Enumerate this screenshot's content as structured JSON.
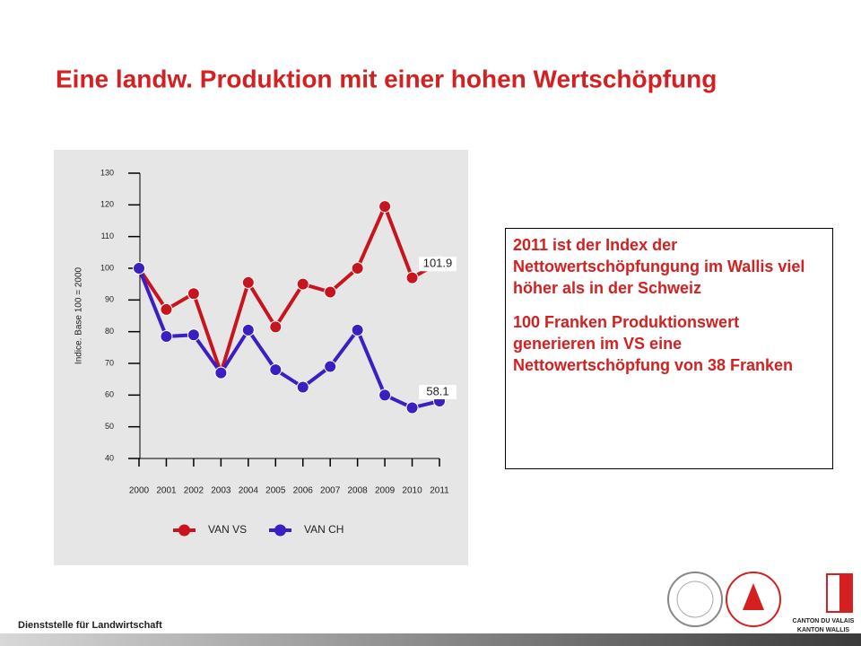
{
  "title": "Eine landw. Produktion mit einer hohen Wertschöpfung",
  "chart_data": {
    "type": "line",
    "ylabel": "Indice. Base 100 = 2000",
    "categories": [
      "2000",
      "2001",
      "2002",
      "2003",
      "2004",
      "2005",
      "2006",
      "2007",
      "2008",
      "2009",
      "2010",
      "2011"
    ],
    "series": [
      {
        "name": "VAN VS",
        "color": "#c8141e",
        "values": [
          100,
          87,
          92,
          67,
          95.5,
          81.5,
          95,
          92.5,
          100,
          119.5,
          97,
          101.9
        ]
      },
      {
        "name": "VAN CH",
        "color": "#3b1fc2",
        "values": [
          100,
          78.5,
          79,
          67,
          80.5,
          68,
          62.5,
          69,
          80.5,
          60,
          56,
          58.1
        ]
      }
    ],
    "ylim": [
      40,
      130
    ],
    "yticks": [
      40,
      50,
      60,
      70,
      80,
      90,
      100,
      110,
      120,
      130
    ]
  },
  "note": [
    "2011 ist der Index der Nettowertschöpfungung im Wallis viel höher als in der Schweiz",
    "100 Franken Produktionswert generieren im VS eine Nettowertschöpfung von 38 Franken"
  ],
  "footer": {
    "text": "Dienststelle für Landwirtschaft",
    "logo_lines": [
      "CANTON DU VALAIS",
      "KANTON WALLIS"
    ]
  }
}
